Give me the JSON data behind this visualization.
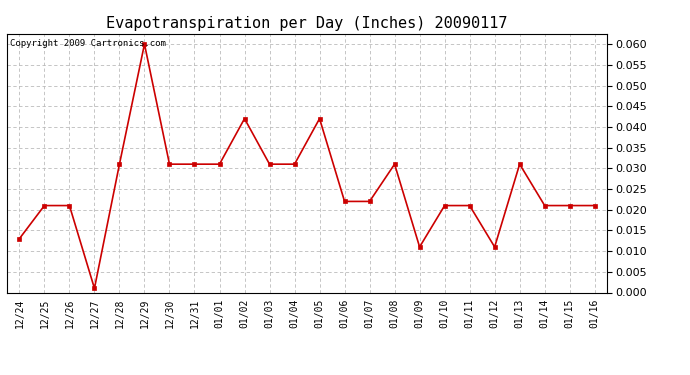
{
  "title": "Evapotranspiration per Day (Inches) 20090117",
  "copyright_text": "Copyright 2009 Cartronics.com",
  "x_labels": [
    "12/24",
    "12/25",
    "12/26",
    "12/27",
    "12/28",
    "12/29",
    "12/30",
    "12/31",
    "01/01",
    "01/02",
    "01/03",
    "01/04",
    "01/05",
    "01/06",
    "01/07",
    "01/08",
    "01/09",
    "01/10",
    "01/11",
    "01/12",
    "01/13",
    "01/14",
    "01/15",
    "01/16"
  ],
  "y_values": [
    0.013,
    0.021,
    0.021,
    0.001,
    0.031,
    0.06,
    0.031,
    0.031,
    0.031,
    0.042,
    0.031,
    0.031,
    0.042,
    0.022,
    0.022,
    0.031,
    0.011,
    0.021,
    0.021,
    0.011,
    0.031,
    0.021,
    0.021,
    0.021
  ],
  "line_color": "#cc0000",
  "marker": "s",
  "marker_size": 3,
  "ylim": [
    0.0,
    0.0625
  ],
  "yticks": [
    0.0,
    0.005,
    0.01,
    0.015,
    0.02,
    0.025,
    0.03,
    0.035,
    0.04,
    0.045,
    0.05,
    0.055,
    0.06
  ],
  "background_color": "#ffffff",
  "grid_color": "#bbbbbb",
  "title_fontsize": 11,
  "copyright_fontsize": 6.5,
  "tick_fontsize": 7,
  "ytick_fontsize": 8
}
